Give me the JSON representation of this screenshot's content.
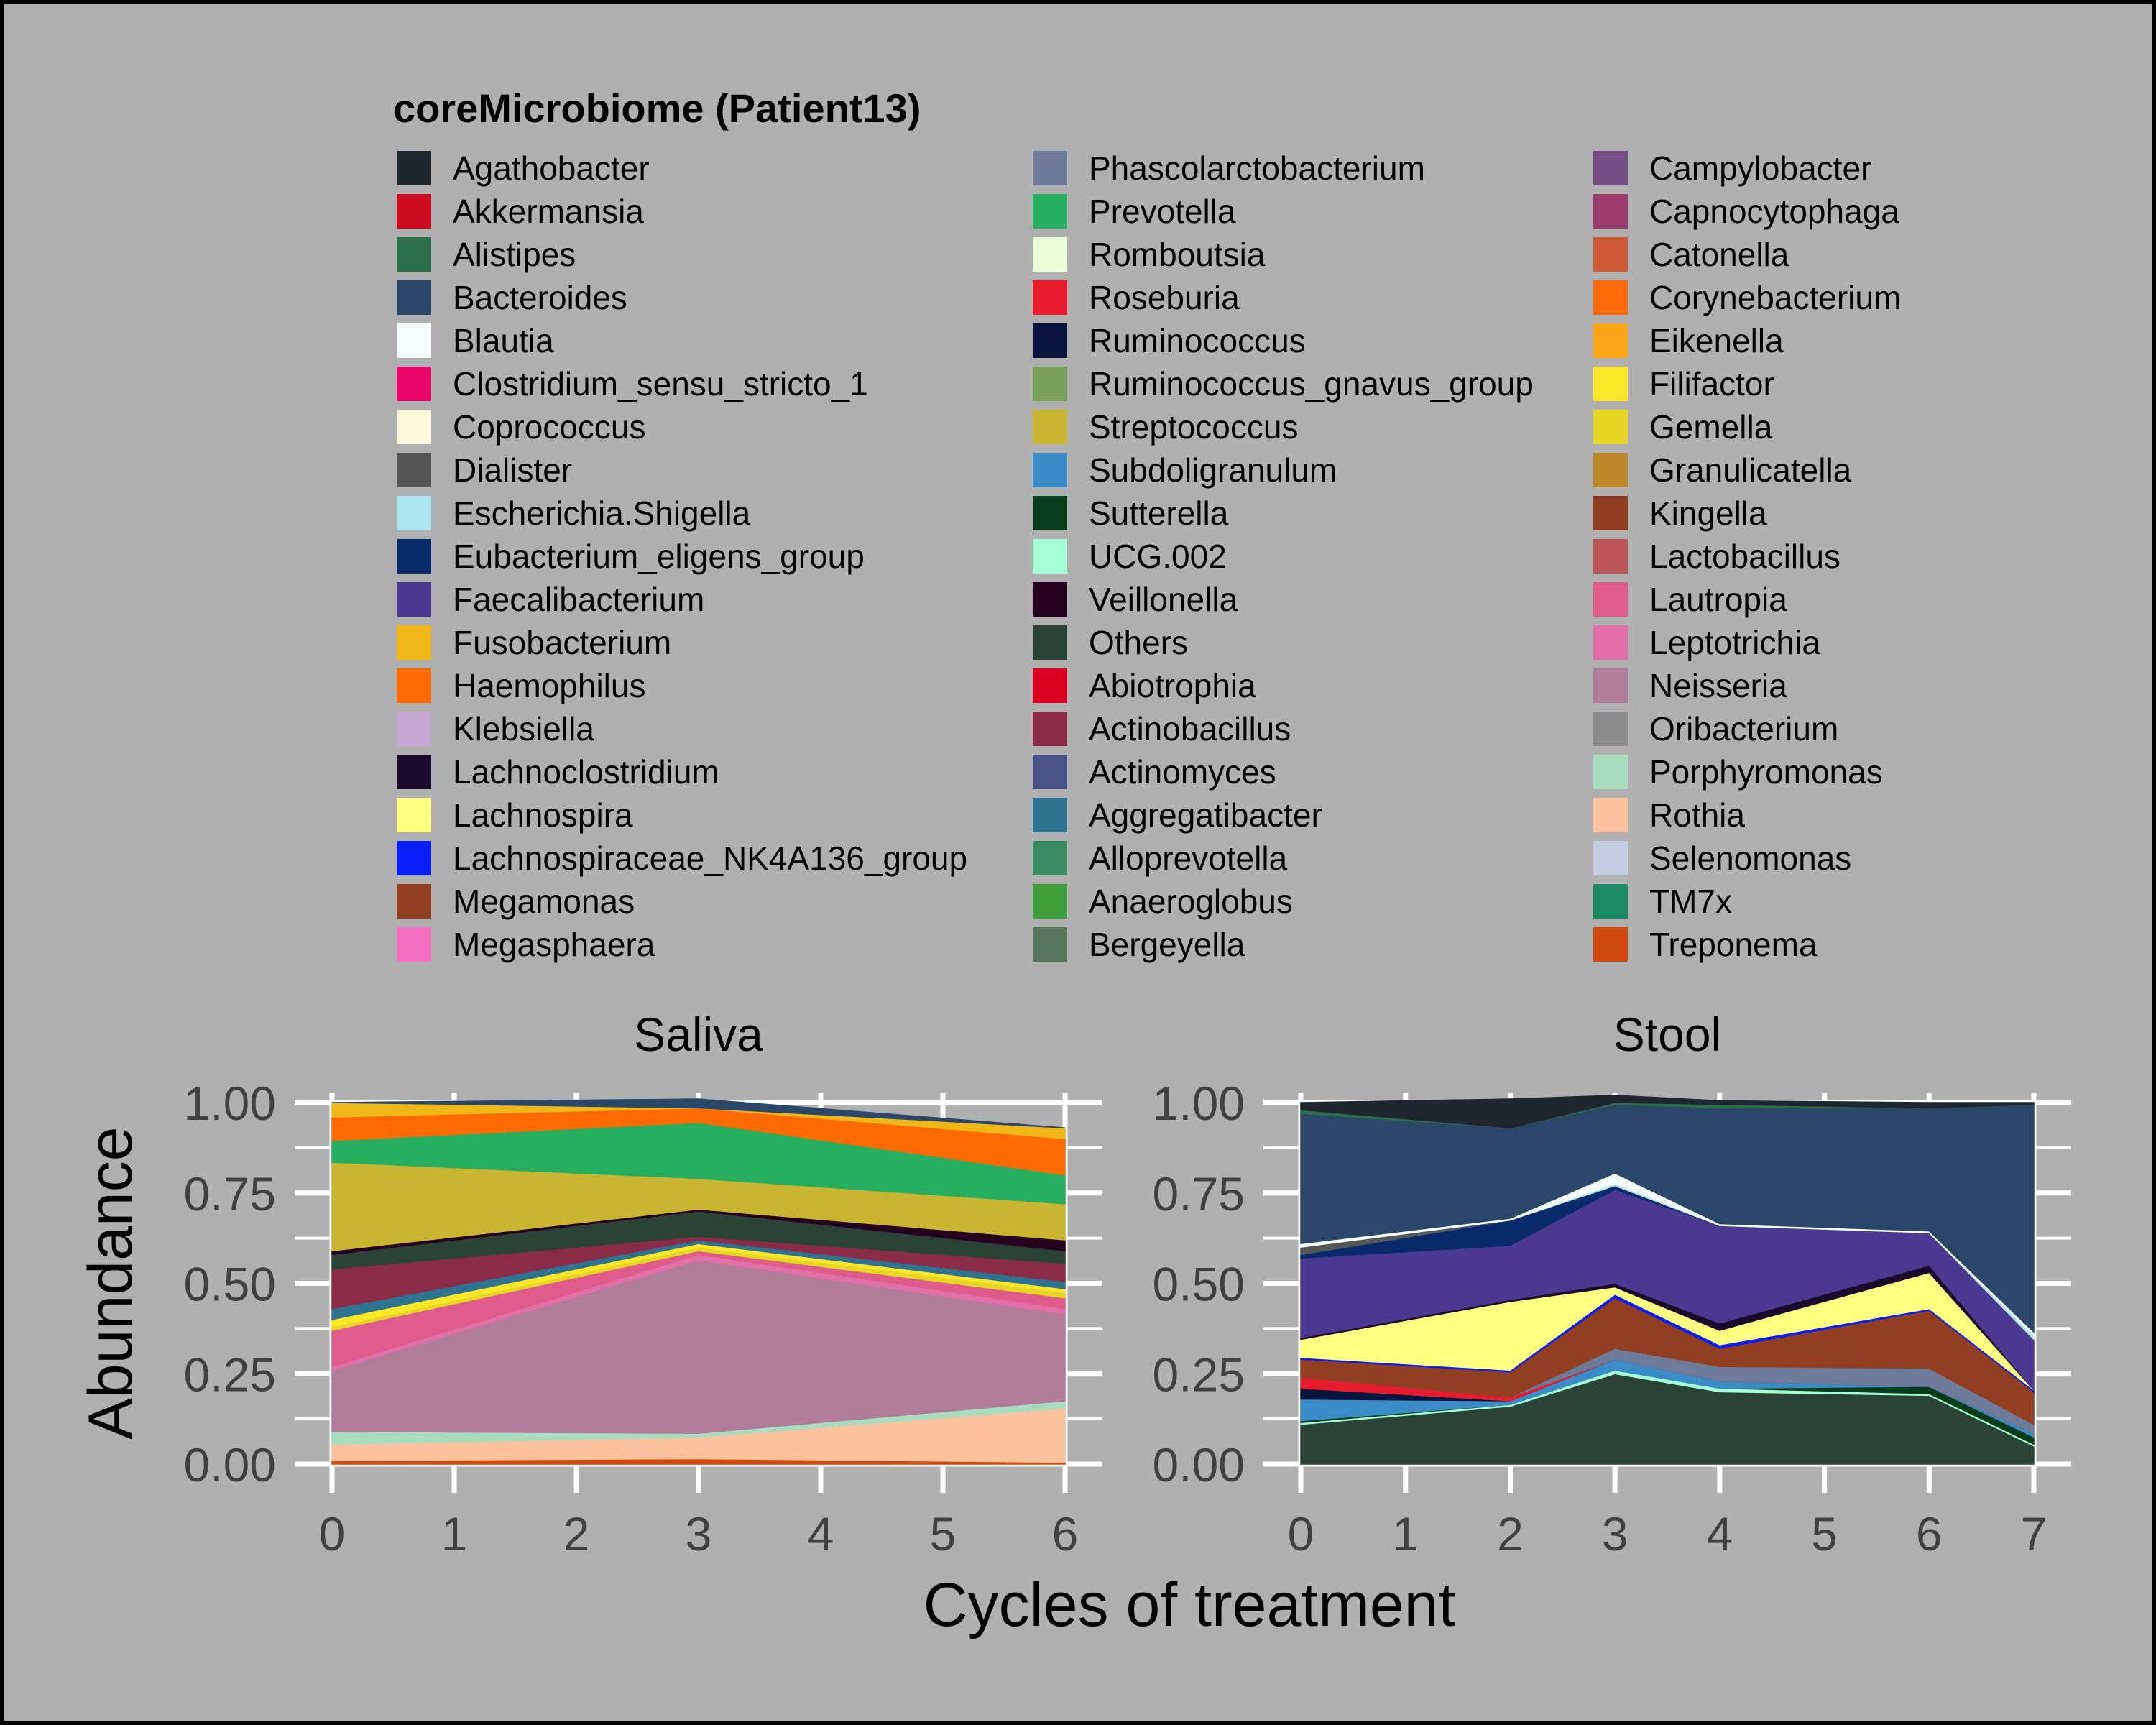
{
  "legend": {
    "title": "coreMicrobiome (Patient13)",
    "items": [
      {
        "name": "Agathobacter",
        "color": "#21252d"
      },
      {
        "name": "Akkermansia",
        "color": "#cc0c1f"
      },
      {
        "name": "Alistipes",
        "color": "#2b6e4a"
      },
      {
        "name": "Bacteroides",
        "color": "#2a4668"
      },
      {
        "name": "Blautia",
        "color": "#f3fdfe"
      },
      {
        "name": "Clostridium_sensu_stricto_1",
        "color": "#e9066a"
      },
      {
        "name": "Coprococcus",
        "color": "#fbf8dc"
      },
      {
        "name": "Dialister",
        "color": "#555555"
      },
      {
        "name": "Escherichia.Shigella",
        "color": "#ace6ef"
      },
      {
        "name": "Eubacterium_eligens_group",
        "color": "#072a6b"
      },
      {
        "name": "Faecalibacterium",
        "color": "#4b3891"
      },
      {
        "name": "Fusobacterium",
        "color": "#efb718"
      },
      {
        "name": "Haemophilus",
        "color": "#fd6a00"
      },
      {
        "name": "Klebsiella",
        "color": "#c5a7d4"
      },
      {
        "name": "Lachnoclostridium",
        "color": "#1a0a2c"
      },
      {
        "name": "Lachnospira",
        "color": "#ffff80"
      },
      {
        "name": "Lachnospiraceae_NK4A136_group",
        "color": "#0a1ff7"
      },
      {
        "name": "Megamonas",
        "color": "#923f21"
      },
      {
        "name": "Megasphaera",
        "color": "#f46fc2"
      },
      {
        "name": "Phascolarctobacterium",
        "color": "#6d7b9b"
      },
      {
        "name": "Prevotella",
        "color": "#27ae60"
      },
      {
        "name": "Romboutsia",
        "color": "#e9fed9"
      },
      {
        "name": "Roseburia",
        "color": "#e81b2c"
      },
      {
        "name": "Ruminococcus",
        "color": "#071540"
      },
      {
        "name": "Ruminococcus_gnavus_group",
        "color": "#7ba05b"
      },
      {
        "name": "Streptococcus",
        "color": "#c9b52f"
      },
      {
        "name": "Subdoligranulum",
        "color": "#3b8bc6"
      },
      {
        "name": "Sutterella",
        "color": "#073d1a"
      },
      {
        "name": "UCG.002",
        "color": "#a5ffd6"
      },
      {
        "name": "Veillonella",
        "color": "#27001f"
      },
      {
        "name": "Others",
        "color": "#2b4336"
      },
      {
        "name": "Abiotrophia",
        "color": "#d90021"
      },
      {
        "name": "Actinobacillus",
        "color": "#8a2c48"
      },
      {
        "name": "Actinomyces",
        "color": "#475389"
      },
      {
        "name": "Aggregatibacter",
        "color": "#2e7391"
      },
      {
        "name": "Alloprevotella",
        "color": "#3a8a62"
      },
      {
        "name": "Anaeroglobus",
        "color": "#3d9e3b"
      },
      {
        "name": "Bergeyella",
        "color": "#57765c"
      },
      {
        "name": "Campylobacter",
        "color": "#754e86"
      },
      {
        "name": "Capnocytophaga",
        "color": "#9a3d6a"
      },
      {
        "name": "Catonella",
        "color": "#ce5a38"
      },
      {
        "name": "Corynebacterium",
        "color": "#fd6a09"
      },
      {
        "name": "Eikenella",
        "color": "#fda315"
      },
      {
        "name": "Filifactor",
        "color": "#fde727"
      },
      {
        "name": "Gemella",
        "color": "#e7d525"
      },
      {
        "name": "Granulicatella",
        "color": "#be8a27"
      },
      {
        "name": "Kingella",
        "color": "#8e3e1e"
      },
      {
        "name": "Lactobacillus",
        "color": "#ba5458"
      },
      {
        "name": "Lautropia",
        "color": "#de5b8b"
      },
      {
        "name": "Leptotrichia",
        "color": "#e26fa8"
      },
      {
        "name": "Neisseria",
        "color": "#b07c9a"
      },
      {
        "name": "Oribacterium",
        "color": "#8a8a8a"
      },
      {
        "name": "Porphyromonas",
        "color": "#a8dcc1"
      },
      {
        "name": "Rothia",
        "color": "#fcc29c"
      },
      {
        "name": "Selenomonas",
        "color": "#c5cde2"
      },
      {
        "name": "TM7x",
        "color": "#1c8b65"
      },
      {
        "name": "Treponema",
        "color": "#d14a0d"
      }
    ]
  },
  "chart_data": {
    "type": "area",
    "ylabel": "Abundance",
    "xlabel": "Cycles of treatment",
    "yticks": [
      "0.00",
      "0.25",
      "0.50",
      "0.75",
      "1.00"
    ],
    "ylim": [
      0,
      1
    ],
    "grid": true,
    "legend_position": "top",
    "panels": [
      {
        "title": "Saliva",
        "x": [
          0,
          3,
          6
        ],
        "xticks": [
          "0",
          "1",
          "2",
          "3",
          "4",
          "5",
          "6"
        ],
        "xlim": [
          0,
          6
        ],
        "layers": [
          {
            "name": "Treponema",
            "values": [
              0.01,
              0.015,
              0.005
            ]
          },
          {
            "name": "Rothia",
            "values": [
              0.045,
              0.06,
              0.15
            ]
          },
          {
            "name": "Porphyromonas",
            "values": [
              0.035,
              0.01,
              0.02
            ]
          },
          {
            "name": "Neisseria",
            "values": [
              0.17,
              0.48,
              0.24
            ]
          },
          {
            "name": "Leptotrichia",
            "values": [
              0.01,
              0.015,
              0.015
            ]
          },
          {
            "name": "Lautropia",
            "values": [
              0.1,
              0.01,
              0.03
            ]
          },
          {
            "name": "Gemella",
            "values": [
              0.01,
              0.01,
              0.015
            ]
          },
          {
            "name": "Filifactor",
            "values": [
              0.02,
              0.01,
              0.01
            ]
          },
          {
            "name": "Aggregatibacter",
            "values": [
              0.03,
              0.01,
              0.02
            ]
          },
          {
            "name": "Actinobacillus",
            "values": [
              0.11,
              0.01,
              0.05
            ]
          },
          {
            "name": "Others",
            "values": [
              0.04,
              0.07,
              0.035
            ]
          },
          {
            "name": "Veillonella",
            "values": [
              0.01,
              0.005,
              0.03
            ]
          },
          {
            "name": "Streptococcus",
            "values": [
              0.245,
              0.085,
              0.1
            ]
          },
          {
            "name": "Prevotella",
            "values": [
              0.06,
              0.155,
              0.08
            ]
          },
          {
            "name": "Haemophilus",
            "values": [
              0.065,
              0.04,
              0.1
            ]
          },
          {
            "name": "Fusobacterium",
            "values": [
              0.04,
              0.0,
              0.03
            ]
          },
          {
            "name": "Bacteroides",
            "values": [
              0.0,
              0.025,
              0.0
            ]
          }
        ]
      },
      {
        "title": "Stool",
        "x": [
          0,
          2,
          3,
          4,
          6,
          7
        ],
        "xticks": [
          "0",
          "1",
          "2",
          "3",
          "4",
          "5",
          "6",
          "7"
        ],
        "xlim": [
          0,
          7
        ],
        "layers": [
          {
            "name": "Others",
            "values": [
              0.11,
              0.16,
              0.25,
              0.2,
              0.19,
              0.05
            ]
          },
          {
            "name": "UCG.002",
            "values": [
              0.005,
              0.005,
              0.01,
              0.01,
              0.005,
              0.005
            ]
          },
          {
            "name": "Sutterella",
            "values": [
              0.005,
              0.0,
              0.0,
              0.0,
              0.02,
              0.02
            ]
          },
          {
            "name": "Subdoligranulum",
            "values": [
              0.06,
              0.01,
              0.03,
              0.02,
              0.0,
              0.01
            ]
          },
          {
            "name": "Ruminococcus",
            "values": [
              0.03,
              0.0,
              0.0,
              0.0,
              0.0,
              0.0
            ]
          },
          {
            "name": "Roseburia",
            "values": [
              0.03,
              0.01,
              0.0,
              0.0,
              0.0,
              0.0
            ]
          },
          {
            "name": "Phascolarctobacterium",
            "values": [
              0.0,
              0.0,
              0.03,
              0.04,
              0.05,
              0.025
            ]
          },
          {
            "name": "Megamonas",
            "values": [
              0.05,
              0.07,
              0.14,
              0.05,
              0.16,
              0.09
            ]
          },
          {
            "name": "Lachnospiraceae_NK4A136_group",
            "values": [
              0.005,
              0.005,
              0.01,
              0.01,
              0.005,
              0.005
            ]
          },
          {
            "name": "Lachnospira",
            "values": [
              0.05,
              0.19,
              0.02,
              0.04,
              0.1,
              0.0
            ]
          },
          {
            "name": "Lachnoclostridium",
            "values": [
              0.005,
              0.005,
              0.01,
              0.02,
              0.02,
              0.0
            ]
          },
          {
            "name": "Faecalibacterium",
            "values": [
              0.22,
              0.15,
              0.26,
              0.27,
              0.09,
              0.14
            ]
          },
          {
            "name": "Eubacterium_eligens_group",
            "values": [
              0.01,
              0.07,
              0.01,
              0.0,
              0.0,
              0.0
            ]
          },
          {
            "name": "Escherichia.Shigella",
            "values": [
              0.0,
              0.0,
              0.005,
              0.0,
              0.0,
              0.01
            ]
          },
          {
            "name": "Dialister",
            "values": [
              0.02,
              0.0,
              0.0,
              0.0,
              0.0,
              0.0
            ]
          },
          {
            "name": "Blautia",
            "values": [
              0.01,
              0.005,
              0.03,
              0.005,
              0.005,
              0.01
            ]
          },
          {
            "name": "Bacteroides",
            "values": [
              0.36,
              0.25,
              0.19,
              0.32,
              0.34,
              0.63
            ]
          },
          {
            "name": "Alistipes",
            "values": [
              0.01,
              0.0,
              0.005,
              0.01,
              0.0,
              0.0
            ]
          },
          {
            "name": "Agathobacter",
            "values": [
              0.02,
              0.08,
              0.02,
              0.01,
              0.015,
              0.005
            ]
          }
        ]
      }
    ]
  }
}
